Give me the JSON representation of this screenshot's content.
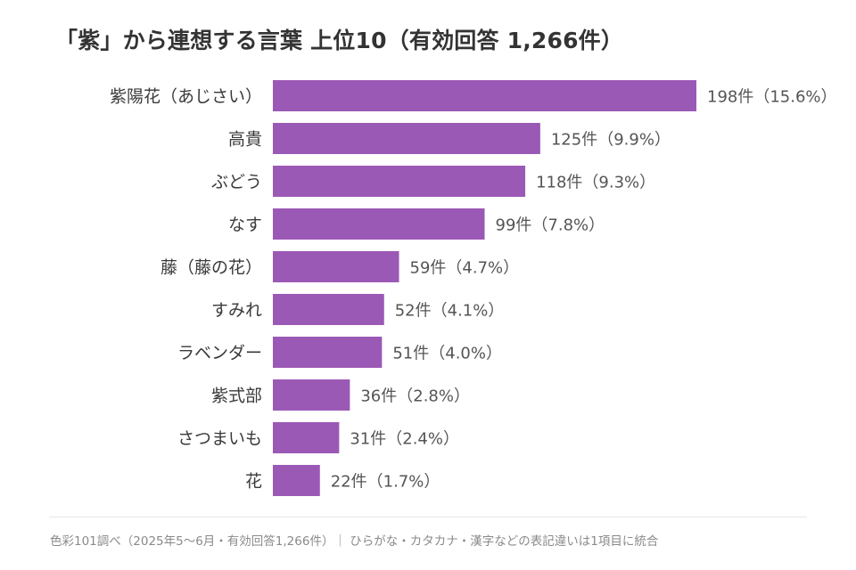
{
  "chart_data": {
    "type": "bar",
    "orientation": "horizontal",
    "title": "「紫」から連想する言葉 上位10（有効回答 1,266件）",
    "categories": [
      "紫陽花（あじさい）",
      "高貴",
      "ぶどう",
      "なす",
      "藤（藤の花）",
      "すみれ",
      "ラベンダー",
      "紫式部",
      "さつまいも",
      "花"
    ],
    "values": [
      198,
      125,
      118,
      99,
      59,
      52,
      51,
      36,
      31,
      22
    ],
    "value_labels": [
      "198件（15.6%）",
      "125件（9.9%）",
      "118件（9.3%）",
      "99件（7.8%）",
      "59件（4.7%）",
      "52件（4.1%）",
      "51件（4.0%）",
      "36件（2.8%）",
      "31件（2.4%）",
      "22件（1.7%）"
    ],
    "bar_color": "#9b59b6",
    "xlim": [
      0,
      198
    ],
    "grid": false,
    "xlabel": "",
    "ylabel": ""
  },
  "footer": "色彩101調べ（2025年5〜6月・有効回答1,266件）｜ ひらがな・カタカナ・漢字などの表記違いは1項目に統合"
}
